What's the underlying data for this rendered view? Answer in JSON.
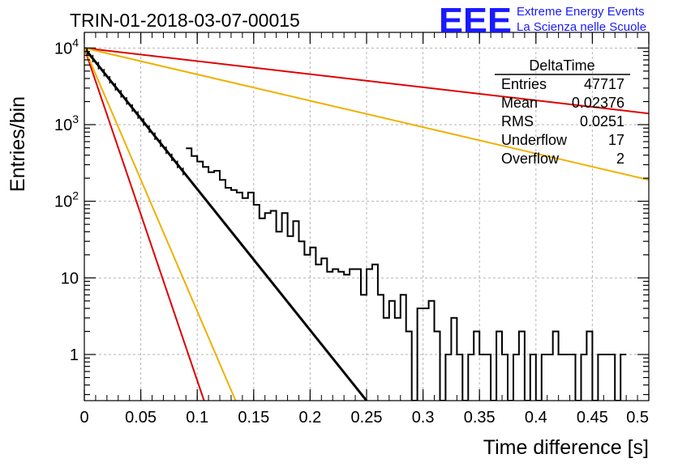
{
  "title": "TRIN-01-2018-03-07-00015",
  "logo": {
    "mark": "EEE",
    "line1": "Extreme Energy Events",
    "line2": "La Scienza nelle Scuole",
    "color": "#1a1aff"
  },
  "stats": {
    "name": "DeltaTime",
    "rows": [
      {
        "label": "Entries",
        "value": "47717"
      },
      {
        "label": "Mean",
        "value": "0.02376"
      },
      {
        "label": "RMS",
        "value": "0.0251"
      },
      {
        "label": "Underflow",
        "value": "17"
      },
      {
        "label": "Overflow",
        "value": "2"
      }
    ]
  },
  "chart_data": {
    "type": "line",
    "xlabel": "Time difference [s]",
    "ylabel": "Entries/bin",
    "xlim": [
      0,
      0.5
    ],
    "ylim": [
      0.25,
      16000
    ],
    "yscale": "log",
    "grid": true,
    "x_ticks": [
      "0",
      "0.05",
      "0.1",
      "0.15",
      "0.2",
      "0.25",
      "0.3",
      "0.35",
      "0.4",
      "0.45",
      "0.5"
    ],
    "y_ticks": [
      {
        "value": 1,
        "label": "1"
      },
      {
        "value": 10,
        "label": "10"
      },
      {
        "value": 100,
        "base": "10",
        "exp": "2"
      },
      {
        "value": 1000,
        "base": "10",
        "exp": "3"
      },
      {
        "value": 10000,
        "base": "10",
        "exp": "4"
      }
    ],
    "histogram": {
      "bin_width": 0.005,
      "dense_fit_region": [
        0,
        0.09
      ],
      "bins": [
        [
          0.09,
          490
        ],
        [
          0.095,
          390
        ],
        [
          0.1,
          330
        ],
        [
          0.105,
          280
        ],
        [
          0.11,
          240
        ],
        [
          0.115,
          250
        ],
        [
          0.12,
          190
        ],
        [
          0.125,
          150
        ],
        [
          0.13,
          140
        ],
        [
          0.135,
          130
        ],
        [
          0.14,
          110
        ],
        [
          0.145,
          130
        ],
        [
          0.15,
          90
        ],
        [
          0.155,
          60
        ],
        [
          0.16,
          70
        ],
        [
          0.165,
          75
        ],
        [
          0.17,
          40
        ],
        [
          0.175,
          70
        ],
        [
          0.18,
          35
        ],
        [
          0.185,
          55
        ],
        [
          0.19,
          30
        ],
        [
          0.195,
          20
        ],
        [
          0.2,
          25
        ],
        [
          0.205,
          15
        ],
        [
          0.21,
          18
        ],
        [
          0.215,
          12
        ],
        [
          0.22,
          13
        ],
        [
          0.225,
          12
        ],
        [
          0.23,
          11
        ],
        [
          0.235,
          13
        ],
        [
          0.24,
          13
        ],
        [
          0.245,
          6
        ],
        [
          0.25,
          13
        ],
        [
          0.255,
          15
        ],
        [
          0.26,
          6
        ],
        [
          0.265,
          3
        ],
        [
          0.27,
          5
        ],
        [
          0.275,
          3
        ],
        [
          0.28,
          6
        ],
        [
          0.285,
          2
        ],
        [
          0.29,
          0
        ],
        [
          0.295,
          4
        ],
        [
          0.3,
          4
        ],
        [
          0.305,
          5
        ],
        [
          0.31,
          2
        ],
        [
          0.315,
          0
        ],
        [
          0.32,
          1
        ],
        [
          0.325,
          3
        ],
        [
          0.33,
          1
        ],
        [
          0.335,
          0
        ],
        [
          0.34,
          1
        ],
        [
          0.345,
          2
        ],
        [
          0.35,
          1
        ],
        [
          0.355,
          1
        ],
        [
          0.36,
          0
        ],
        [
          0.365,
          2
        ],
        [
          0.37,
          1
        ],
        [
          0.375,
          0
        ],
        [
          0.38,
          1
        ],
        [
          0.385,
          2
        ],
        [
          0.39,
          0
        ],
        [
          0.395,
          1
        ],
        [
          0.4,
          0
        ],
        [
          0.405,
          1
        ],
        [
          0.41,
          1
        ],
        [
          0.415,
          2
        ],
        [
          0.42,
          1
        ],
        [
          0.425,
          1
        ],
        [
          0.43,
          1
        ],
        [
          0.435,
          0
        ],
        [
          0.44,
          1
        ],
        [
          0.445,
          2
        ],
        [
          0.45,
          0
        ],
        [
          0.455,
          1
        ],
        [
          0.46,
          1
        ],
        [
          0.465,
          1
        ],
        [
          0.47,
          0
        ],
        [
          0.475,
          1
        ]
      ]
    },
    "series": [
      {
        "color": "#000000",
        "points": [
          [
            0,
            10000
          ],
          [
            0.25,
            0.25
          ]
        ]
      },
      {
        "color": "#e00000",
        "points": [
          [
            0,
            10000
          ],
          [
            0.5,
            1400
          ]
        ]
      },
      {
        "color": "#f0b000",
        "points": [
          [
            0,
            10000
          ],
          [
            0.5,
            190
          ]
        ]
      },
      {
        "color": "#e00000",
        "points": [
          [
            0,
            10000
          ],
          [
            0.106,
            0.25
          ]
        ]
      },
      {
        "color": "#f0b000",
        "points": [
          [
            0,
            10000
          ],
          [
            0.134,
            0.25
          ]
        ]
      }
    ]
  }
}
